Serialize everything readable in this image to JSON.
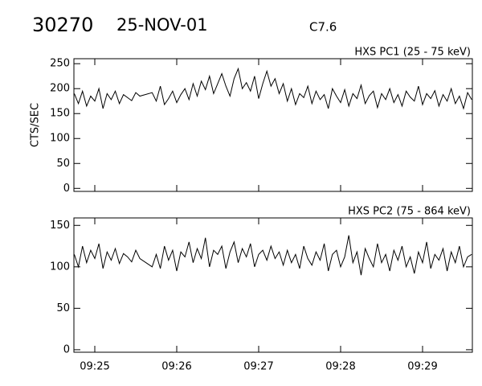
{
  "header": {
    "id": "30270",
    "date": "25-NOV-01",
    "class": "C7.6"
  },
  "chart_data": [
    {
      "type": "line",
      "title": "HXS PC1 (25 - 75 keV)",
      "ylabel": "CTS/SEC",
      "color": "#000000",
      "xlim": [
        564.745,
        569.608
      ],
      "ylim": [
        -6,
        260
      ],
      "yticks": [
        0,
        50,
        100,
        150,
        200,
        250
      ],
      "x": [
        564.75,
        564.8,
        564.85,
        564.9,
        564.95,
        565.0,
        565.05,
        565.1,
        565.15,
        565.2,
        565.25,
        565.3,
        565.35,
        565.4,
        565.45,
        565.5,
        565.55,
        565.7,
        565.75,
        565.8,
        565.85,
        565.9,
        565.95,
        566.0,
        566.05,
        566.1,
        566.15,
        566.2,
        566.25,
        566.3,
        566.35,
        566.4,
        566.45,
        566.5,
        566.55,
        566.6,
        566.65,
        566.7,
        566.75,
        566.8,
        566.85,
        566.9,
        566.95,
        567.0,
        567.05,
        567.1,
        567.15,
        567.2,
        567.25,
        567.3,
        567.35,
        567.4,
        567.45,
        567.5,
        567.55,
        567.6,
        567.65,
        567.7,
        567.75,
        567.8,
        567.85,
        567.9,
        567.95,
        568.0,
        568.05,
        568.1,
        568.15,
        568.2,
        568.25,
        568.3,
        568.35,
        568.4,
        568.45,
        568.5,
        568.55,
        568.6,
        568.65,
        568.7,
        568.75,
        568.8,
        568.85,
        568.9,
        568.95,
        569.0,
        569.05,
        569.1,
        569.15,
        569.2,
        569.25,
        569.3,
        569.35,
        569.4,
        569.45,
        569.5,
        569.55,
        569.6
      ],
      "values": [
        190,
        170,
        195,
        165,
        185,
        175,
        200,
        160,
        190,
        178,
        195,
        170,
        188,
        182,
        176,
        192,
        185,
        192,
        175,
        205,
        168,
        180,
        195,
        172,
        188,
        200,
        178,
        210,
        185,
        215,
        198,
        225,
        190,
        210,
        230,
        205,
        185,
        220,
        240,
        200,
        212,
        195,
        225,
        180,
        210,
        235,
        205,
        220,
        190,
        210,
        175,
        200,
        168,
        190,
        182,
        205,
        170,
        195,
        178,
        188,
        160,
        200,
        185,
        172,
        198,
        165,
        190,
        180,
        207,
        170,
        186,
        195,
        162,
        190,
        178,
        200,
        172,
        188,
        165,
        195,
        183,
        175,
        205,
        168,
        190,
        180,
        196,
        165,
        188,
        175,
        200,
        170,
        185,
        160,
        192,
        178
      ]
    },
    {
      "type": "line",
      "title": "HXS PC2 (75 - 864 keV)",
      "color": "#000000",
      "xlim": [
        564.745,
        569.608
      ],
      "ylim": [
        -3,
        159
      ],
      "yticks": [
        0,
        50,
        100,
        150
      ],
      "xticks": [
        {
          "value": 565,
          "label": "09:25"
        },
        {
          "value": 566,
          "label": "09:26"
        },
        {
          "value": 567,
          "label": "09:27"
        },
        {
          "value": 568,
          "label": "09:28"
        },
        {
          "value": 569,
          "label": "09:29"
        }
      ],
      "x": [
        564.75,
        564.8,
        564.85,
        564.9,
        564.95,
        565.0,
        565.05,
        565.1,
        565.15,
        565.2,
        565.25,
        565.3,
        565.35,
        565.4,
        565.45,
        565.5,
        565.55,
        565.7,
        565.75,
        565.8,
        565.85,
        565.9,
        565.95,
        566.0,
        566.05,
        566.1,
        566.15,
        566.2,
        566.25,
        566.3,
        566.35,
        566.4,
        566.45,
        566.5,
        566.55,
        566.6,
        566.65,
        566.7,
        566.75,
        566.8,
        566.85,
        566.9,
        566.95,
        567.0,
        567.05,
        567.1,
        567.15,
        567.2,
        567.25,
        567.3,
        567.35,
        567.4,
        567.45,
        567.5,
        567.55,
        567.6,
        567.65,
        567.7,
        567.75,
        567.8,
        567.85,
        567.9,
        567.95,
        568.0,
        568.05,
        568.1,
        568.15,
        568.2,
        568.25,
        568.3,
        568.35,
        568.4,
        568.45,
        568.5,
        568.55,
        568.6,
        568.65,
        568.7,
        568.75,
        568.8,
        568.85,
        568.9,
        568.95,
        569.0,
        569.05,
        569.1,
        569.15,
        569.2,
        569.25,
        569.3,
        569.35,
        569.4,
        569.45,
        569.5,
        569.55,
        569.6
      ],
      "values": [
        115,
        100,
        125,
        105,
        120,
        110,
        128,
        98,
        118,
        108,
        122,
        104,
        116,
        112,
        106,
        120,
        110,
        100,
        115,
        98,
        125,
        108,
        120,
        95,
        118,
        112,
        130,
        105,
        122,
        110,
        135,
        100,
        120,
        115,
        125,
        98,
        118,
        130,
        105,
        122,
        112,
        128,
        100,
        115,
        120,
        108,
        125,
        110,
        118,
        102,
        120,
        105,
        115,
        98,
        125,
        110,
        102,
        118,
        108,
        128,
        95,
        115,
        120,
        100,
        112,
        138,
        105,
        118,
        90,
        122,
        110,
        100,
        128,
        105,
        115,
        95,
        120,
        108,
        125,
        100,
        112,
        92,
        118,
        105,
        130,
        98,
        115,
        108,
        122,
        95,
        118,
        105,
        125,
        100,
        112,
        115
      ]
    }
  ]
}
